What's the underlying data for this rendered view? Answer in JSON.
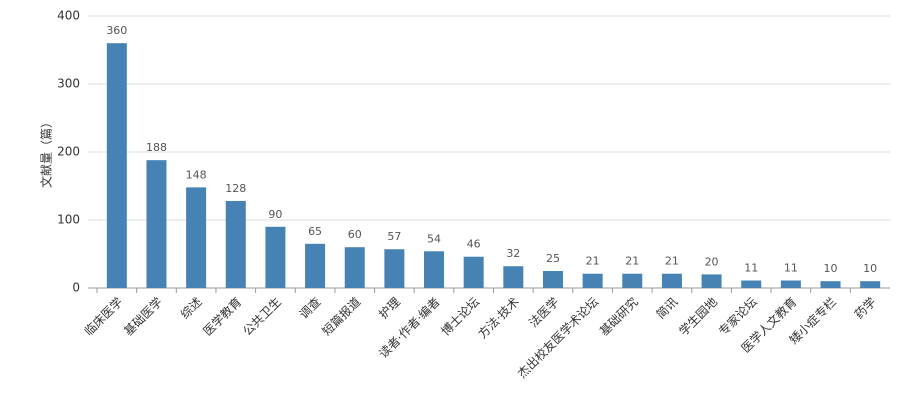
{
  "chart_data": {
    "type": "bar",
    "y_label": "文献量（篇）",
    "categories": [
      "临床医学",
      "基础医学",
      "综述",
      "医学教育",
      "公共卫生",
      "调查",
      "短篇报道",
      "护理",
      "读者·作者·编者",
      "博士论坛",
      "方法·技术",
      "法医学",
      "杰出校友医学术论坛",
      "基础研究",
      "简讯",
      "学生园地",
      "专家论坛",
      "医学人文教育",
      "矮小症专栏",
      "药学"
    ],
    "values": [
      360,
      188,
      148,
      128,
      90,
      65,
      60,
      57,
      54,
      46,
      32,
      25,
      21,
      21,
      21,
      20,
      11,
      11,
      10,
      10
    ],
    "color": "#4682b4",
    "ylim": [
      0,
      400
    ],
    "yticks": [
      0,
      100,
      200,
      300,
      400
    ],
    "grid": true
  }
}
